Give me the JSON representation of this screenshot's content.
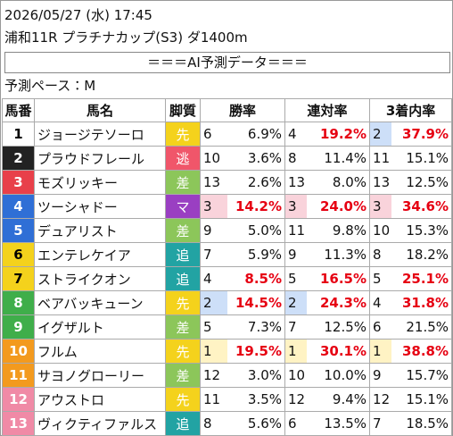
{
  "header": {
    "datetime": "2026/05/27 (水) 17:45",
    "race": "浦和11R プラチナカップ(S3) ダ1400m",
    "banner": "＝＝＝AI予測データ＝＝＝",
    "pace": "予測ペース：M"
  },
  "table": {
    "columns": [
      "馬番",
      "馬名",
      "脚質",
      "勝率",
      "連対率",
      "3着内率"
    ],
    "rank_colors": [
      "#fff3c4",
      "#cddff8",
      "#f9d3db"
    ],
    "emphasis_color": "#e60012",
    "rows": [
      {
        "number": 1,
        "name": "ジョージテソーロ",
        "style": "先",
        "style_color": "#f4d21c",
        "frame_color": "#ffffff",
        "frame_text_color": "#000000",
        "win_rank": 6,
        "win": "6.9%",
        "rentai_rank": 4,
        "rentai": "19.2%",
        "fuku_rank": 2,
        "fuku": "37.9%"
      },
      {
        "number": 2,
        "name": "プラウドフレール",
        "style": "逃",
        "style_color": "#f0566a",
        "frame_color": "#222222",
        "frame_text_color": "#ffffff",
        "win_rank": 10,
        "win": "3.6%",
        "rentai_rank": 8,
        "rentai": "11.4%",
        "fuku_rank": 11,
        "fuku": "15.1%"
      },
      {
        "number": 3,
        "name": "モズリッキー",
        "style": "差",
        "style_color": "#8cc65a",
        "frame_color": "#e8404a",
        "frame_text_color": "#ffffff",
        "win_rank": 13,
        "win": "2.6%",
        "rentai_rank": 13,
        "rentai": "8.0%",
        "fuku_rank": 13,
        "fuku": "12.5%"
      },
      {
        "number": 4,
        "name": "ツーシャドー",
        "style": "マ",
        "style_color": "#9a3fc2",
        "frame_color": "#2f6fd6",
        "frame_text_color": "#ffffff",
        "win_rank": 3,
        "win": "14.2%",
        "rentai_rank": 3,
        "rentai": "24.0%",
        "fuku_rank": 3,
        "fuku": "34.6%"
      },
      {
        "number": 5,
        "name": "デュアリスト",
        "style": "差",
        "style_color": "#8cc65a",
        "frame_color": "#2f6fd6",
        "frame_text_color": "#ffffff",
        "win_rank": 9,
        "win": "5.0%",
        "rentai_rank": 11,
        "rentai": "9.8%",
        "fuku_rank": 10,
        "fuku": "15.3%"
      },
      {
        "number": 6,
        "name": "エンテレケイア",
        "style": "追",
        "style_color": "#22a3a3",
        "frame_color": "#f4d21c",
        "frame_text_color": "#000000",
        "win_rank": 7,
        "win": "5.9%",
        "rentai_rank": 9,
        "rentai": "11.3%",
        "fuku_rank": 8,
        "fuku": "18.2%"
      },
      {
        "number": 7,
        "name": "ストライクオン",
        "style": "追",
        "style_color": "#22a3a3",
        "frame_color": "#f4d21c",
        "frame_text_color": "#000000",
        "win_rank": 4,
        "win": "8.5%",
        "rentai_rank": 5,
        "rentai": "16.5%",
        "fuku_rank": 5,
        "fuku": "25.1%"
      },
      {
        "number": 8,
        "name": "ベアバッキューン",
        "style": "先",
        "style_color": "#f4d21c",
        "frame_color": "#3fae4a",
        "frame_text_color": "#ffffff",
        "win_rank": 2,
        "win": "14.5%",
        "rentai_rank": 2,
        "rentai": "24.3%",
        "fuku_rank": 4,
        "fuku": "31.8%"
      },
      {
        "number": 9,
        "name": "イグザルト",
        "style": "差",
        "style_color": "#8cc65a",
        "frame_color": "#3fae4a",
        "frame_text_color": "#ffffff",
        "win_rank": 5,
        "win": "7.3%",
        "rentai_rank": 7,
        "rentai": "12.5%",
        "fuku_rank": 6,
        "fuku": "21.5%"
      },
      {
        "number": 10,
        "name": "フルム",
        "style": "先",
        "style_color": "#f4d21c",
        "frame_color": "#f39a1e",
        "frame_text_color": "#ffffff",
        "win_rank": 1,
        "win": "19.5%",
        "rentai_rank": 1,
        "rentai": "30.1%",
        "fuku_rank": 1,
        "fuku": "38.8%"
      },
      {
        "number": 11,
        "name": "サヨノグローリー",
        "style": "差",
        "style_color": "#8cc65a",
        "frame_color": "#f39a1e",
        "frame_text_color": "#ffffff",
        "win_rank": 12,
        "win": "3.0%",
        "rentai_rank": 10,
        "rentai": "10.0%",
        "fuku_rank": 9,
        "fuku": "15.7%"
      },
      {
        "number": 12,
        "name": "アウストロ",
        "style": "先",
        "style_color": "#f4d21c",
        "frame_color": "#f08aa6",
        "frame_text_color": "#ffffff",
        "win_rank": 11,
        "win": "3.5%",
        "rentai_rank": 12,
        "rentai": "9.4%",
        "fuku_rank": 12,
        "fuku": "15.1%"
      },
      {
        "number": 13,
        "name": "ヴィクティファルス",
        "style": "追",
        "style_color": "#22a3a3",
        "frame_color": "#f08aa6",
        "frame_text_color": "#ffffff",
        "win_rank": 8,
        "win": "5.6%",
        "rentai_rank": 6,
        "rentai": "13.5%",
        "fuku_rank": 7,
        "fuku": "18.5%"
      }
    ]
  }
}
